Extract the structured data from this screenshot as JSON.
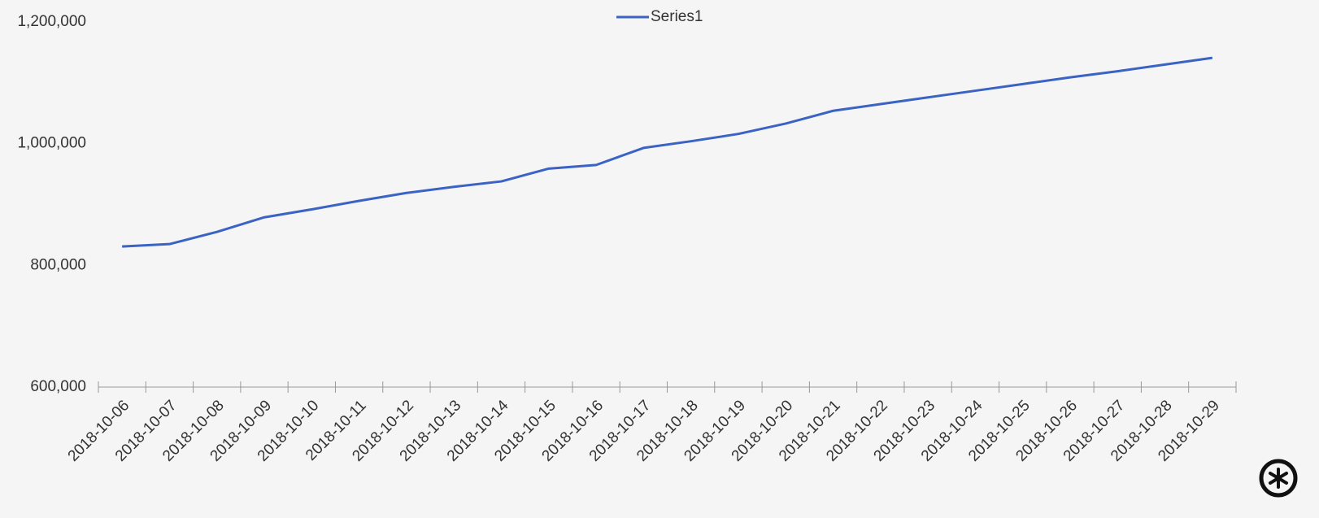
{
  "chart_data": {
    "type": "line",
    "categories": [
      "2018-10-06",
      "2018-10-07",
      "2018-10-08",
      "2018-10-09",
      "2018-10-10",
      "2018-10-11",
      "2018-10-12",
      "2018-10-13",
      "2018-10-14",
      "2018-10-15",
      "2018-10-16",
      "2018-10-17",
      "2018-10-18",
      "2018-10-19",
      "2018-10-20",
      "2018-10-21",
      "2018-10-22",
      "2018-10-23",
      "2018-10-24",
      "2018-10-25",
      "2018-10-26",
      "2018-10-27",
      "2018-10-28",
      "2018-10-29"
    ],
    "series": [
      {
        "name": "Series1",
        "color": "#3a63c4",
        "values": [
          831000,
          835000,
          855000,
          879000,
          892000,
          906000,
          919000,
          929000,
          938000,
          959000,
          965000,
          993000,
          1004000,
          1016000,
          1033000,
          1054000,
          1065000,
          1076000,
          1087000,
          1098000,
          1109000,
          1119000,
          1130000,
          1141000
        ]
      }
    ],
    "ylim": [
      600000,
      1200000
    ],
    "yticks": [
      {
        "value": 600000,
        "label": "600,000"
      },
      {
        "value": 800000,
        "label": "800,000"
      },
      {
        "value": 1000000,
        "label": "1,000,000"
      },
      {
        "value": 1200000,
        "label": "1,200,000"
      }
    ],
    "grid": false,
    "legend": "top"
  }
}
